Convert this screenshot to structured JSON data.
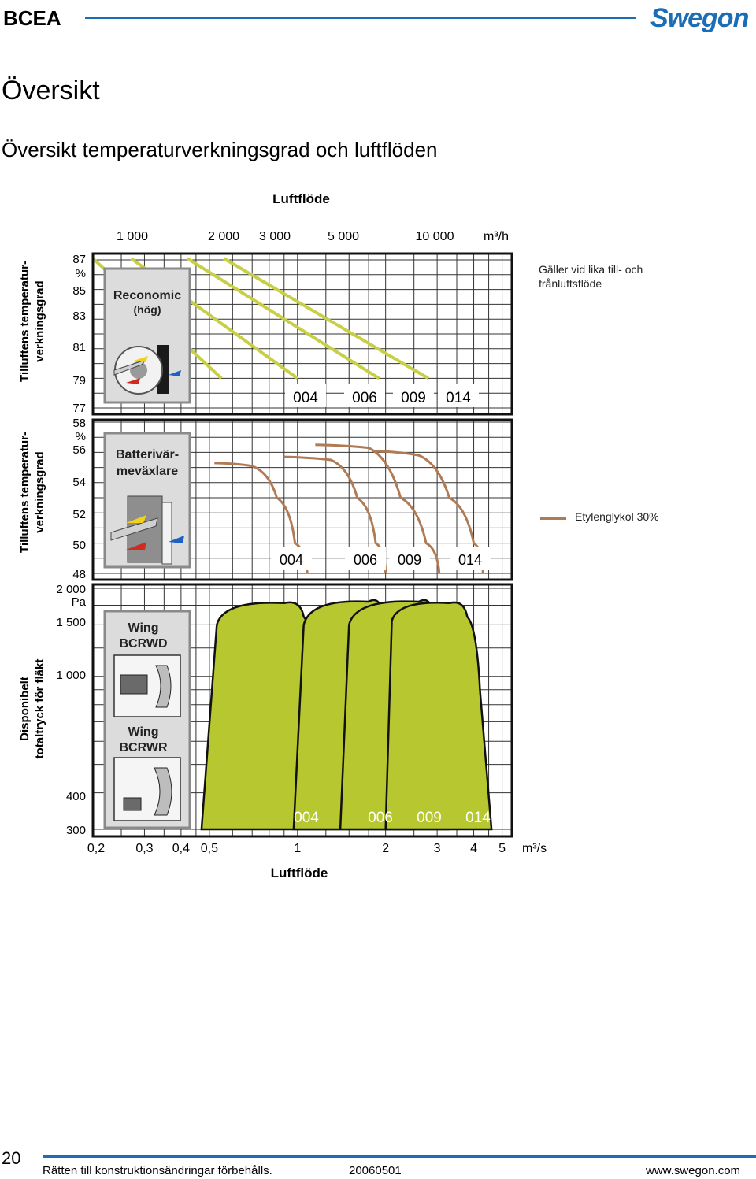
{
  "header": {
    "brand": "BCEA",
    "logo_text": "Swegon"
  },
  "page_title": "Översikt",
  "section_title": "Översikt temperaturverkningsgrad och luftflöden",
  "colors": {
    "accent_blue": "#1c6db5",
    "recon_line": "#c8cf45",
    "glycol_line": "#b07a55",
    "fan_fill": "#b7c72f"
  },
  "chart_data": {
    "type": "line",
    "x_axis_top": {
      "label": "Luftflöde",
      "ticks": [
        "1 000",
        "2 000",
        "3 000",
        "5 000",
        "10 000"
      ],
      "unit": "m³/h"
    },
    "x_axis_bottom": {
      "label": "Luftflöde",
      "ticks": [
        "0,2",
        "0,3",
        "0,4",
        "0,5",
        "1",
        "2",
        "3",
        "4",
        "5"
      ],
      "unit": "m³/s",
      "scale": "log"
    },
    "panels": [
      {
        "id": "reconomic",
        "ylabel": "Tilluftens temperatur-\nverkningsgrad",
        "y_unit": "%",
        "y_ticks": [
          87,
          85,
          83,
          81,
          79,
          77
        ],
        "ylim": [
          77,
          87
        ],
        "box_title": "Reconomic",
        "box_subtitle": "(hög)",
        "series": [
          {
            "name": "004",
            "x": [
              0.2,
              0.55
            ],
            "y": [
              87.1,
              79
            ]
          },
          {
            "name": "006",
            "x": [
              0.27,
              1.0
            ],
            "y": [
              87.1,
              79
            ]
          },
          {
            "name": "009",
            "x": [
              0.42,
              1.9
            ],
            "y": [
              87.1,
              79
            ]
          },
          {
            "name": "014",
            "x": [
              0.56,
              2.8
            ],
            "y": [
              87.1,
              79
            ]
          }
        ]
      },
      {
        "id": "batteri",
        "ylabel": "Tilluftens temperatur-\nverkningsgrad",
        "y_unit": "%",
        "y_ticks": [
          58,
          56,
          54,
          52,
          50,
          48
        ],
        "ylim": [
          48,
          58
        ],
        "box_title": "Batterivär-\nmeväxlare",
        "series_note": "Etylenglykol 30%",
        "series": [
          {
            "name": "004",
            "x": [
              0.52,
              0.7,
              0.85,
              0.98,
              1.08
            ],
            "y": [
              55.3,
              55.1,
              53.0,
              50.0,
              48.0
            ]
          },
          {
            "name": "006",
            "x": [
              0.9,
              1.3,
              1.6,
              1.85,
              2.0
            ],
            "y": [
              55.7,
              55.5,
              53.0,
              50.0,
              48.0
            ]
          },
          {
            "name": "009",
            "x": [
              1.15,
              1.75,
              2.25,
              2.75,
              3.05
            ],
            "y": [
              56.5,
              56.3,
              53.0,
              50.0,
              48.0
            ]
          },
          {
            "name": "014",
            "x": [
              1.8,
              2.6,
              3.3,
              4.0,
              4.3
            ],
            "y": [
              56.1,
              55.8,
              53.0,
              50.0,
              48.0
            ]
          }
        ]
      },
      {
        "id": "fan",
        "ylabel": "Disponibelt\ntotaltryck för fläkt",
        "y_unit": "Pa",
        "y_ticks": [
          2000,
          1500,
          1000,
          400,
          300
        ],
        "y_tick_labels": [
          "2 000",
          "1 500",
          "1 000",
          "400",
          "300"
        ],
        "ylim": [
          300,
          2000
        ],
        "y_scale": "log",
        "box_title_1": "Wing\nBCRWD",
        "box_title_2": "Wing\nBCRWR",
        "series": [
          {
            "name": "004",
            "x": [
              0.47,
              0.53,
              0.9,
              1.05,
              1.25,
              1.38
            ],
            "y": [
              300,
              1500,
              1780,
              1600,
              800,
              300
            ]
          },
          {
            "name": "006",
            "x": [
              0.97,
              1.05,
              1.75,
              1.95,
              2.25,
              2.45
            ],
            "y": [
              300,
              1500,
              1800,
              1650,
              900,
              300
            ]
          },
          {
            "name": "009",
            "x": [
              1.4,
              1.5,
              2.6,
              2.9,
              3.1,
              3.3
            ],
            "y": [
              300,
              1500,
              1800,
              1650,
              900,
              300
            ]
          },
          {
            "name": "014",
            "x": [
              2.0,
              2.1,
              3.3,
              3.8,
              4.2,
              4.6
            ],
            "y": [
              300,
              1550,
              1780,
              1600,
              900,
              300
            ]
          }
        ]
      }
    ],
    "legend": {
      "placement": "right",
      "entry": "Etylenglykol 30%"
    },
    "notes": [
      "Gäller vid lika till- och frånluftsflöde"
    ],
    "grid": true
  },
  "labels": {
    "top_axis": "Luftflöde",
    "bottom_axis": "Luftflöde",
    "note_equal_flow": "Gäller vid lika till- och frånluftsflöde",
    "legend_glycol": "Etylenglykol 30%"
  },
  "footer": {
    "page_number": "20",
    "rights": "Rätten till konstruktionsändringar förbehålls.",
    "date": "20060501",
    "url": "www.swegon.com"
  }
}
